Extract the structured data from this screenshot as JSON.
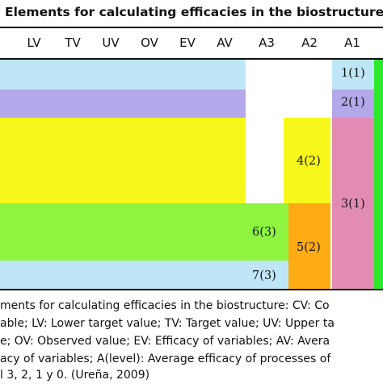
{
  "title": "Elements for calculating efficacies in the biostructure *",
  "columns": [
    "LV",
    "TV",
    "UV",
    "OV",
    "EV",
    "AV",
    "A3",
    "A2",
    "A1"
  ],
  "cells": {
    "a1_1": "1(1)",
    "a1_2": "2(1)",
    "a1_3": "3(1)",
    "a2_4": "4(2)",
    "a2_5": "5(2)",
    "a3_6": "6(3)",
    "a3_7": "7(3)"
  },
  "colors": {
    "light_blue": "#bfe6f6",
    "lavender": "#b5a8ea",
    "yellow": "#f7f71b",
    "light_green": "#8ef43f",
    "orange": "#ffab13",
    "pink": "#e28cb4",
    "green_edge": "#2ee82e"
  },
  "caption": [
    "ments for calculating efficacies in the biostructure: CV: Co",
    "able; LV: Lower target value; TV: Target value; UV: Upper ta",
    "e; OV: Observed value; EV: Efficacy of variables; AV: Avera",
    "acy of variables; A(level): Average efficacy of processes of",
    "l 3, 2, 1 y 0. (Ureña, 2009)"
  ]
}
